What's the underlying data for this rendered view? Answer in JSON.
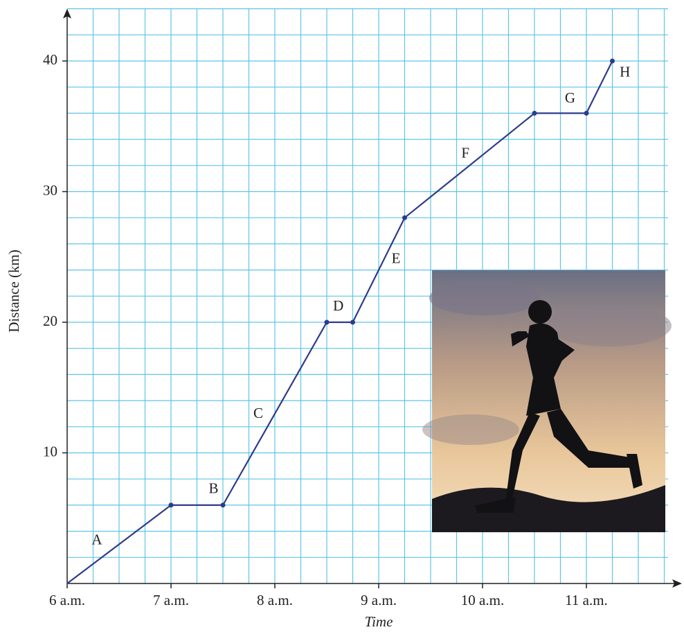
{
  "chart_data": {
    "type": "line",
    "xlabel": "Time",
    "ylabel": "Distance (km)",
    "x": [
      6,
      7,
      7.5,
      8.5,
      8.75,
      9.25,
      10.5,
      11,
      11.25
    ],
    "series": [
      {
        "color": "#2e3b8c",
        "values": [
          0,
          6,
          6,
          20,
          20,
          28,
          36,
          36,
          40
        ]
      }
    ],
    "segments": [
      "A",
      "B",
      "C",
      "D",
      "E",
      "F",
      "G",
      "H"
    ],
    "xlim": [
      6,
      11.92
    ],
    "ylim": [
      0,
      44
    ],
    "xticks": [
      {
        "value": 6,
        "label": "6 a.m."
      },
      {
        "value": 7,
        "label": "7 a.m."
      },
      {
        "value": 8,
        "label": "8 a.m."
      },
      {
        "value": 9,
        "label": "9 a.m."
      },
      {
        "value": 10,
        "label": "10 a.m."
      },
      {
        "value": 11,
        "label": "11 a.m."
      }
    ],
    "yticks": [
      10,
      20,
      30,
      40
    ],
    "grid": true,
    "grid_step_x": 0.25,
    "grid_step_y": 2,
    "grid_color": "#5ec5e6"
  }
}
